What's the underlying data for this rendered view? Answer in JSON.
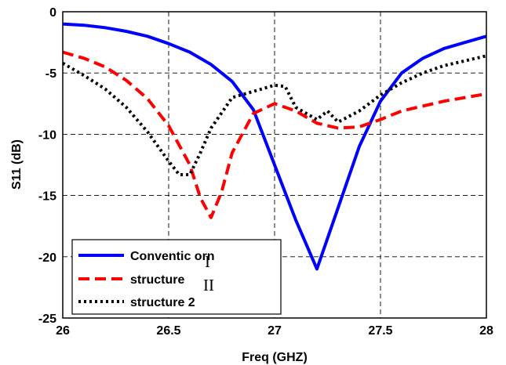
{
  "chart_data": {
    "type": "line",
    "xlabel": "Freq (GHZ)",
    "ylabel": "S11 (dB)",
    "xlim": [
      26,
      28
    ],
    "ylim": [
      -25,
      0
    ],
    "x_ticks": [
      "26",
      "26.5",
      "27",
      "27.5",
      "28"
    ],
    "y_ticks": [
      "0",
      "-5",
      "-10",
      "-15",
      "-20",
      "-25"
    ],
    "grid": true,
    "legend_placement": "bottom-left",
    "series": [
      {
        "name": "Conventic orn",
        "color": "#0000ff",
        "style": "solid",
        "x": [
          26.0,
          26.1,
          26.2,
          26.3,
          26.4,
          26.5,
          26.6,
          26.7,
          26.8,
          26.9,
          27.0,
          27.1,
          27.2,
          27.3,
          27.4,
          27.5,
          27.6,
          27.7,
          27.8,
          27.9,
          28.0
        ],
        "y": [
          -1.0,
          -1.1,
          -1.3,
          -1.6,
          -2.0,
          -2.6,
          -3.3,
          -4.3,
          -5.7,
          -8.0,
          -12.5,
          -17.0,
          -21.0,
          -16.0,
          -11.0,
          -7.3,
          -5.0,
          -3.8,
          -3.0,
          -2.5,
          -2.0
        ]
      },
      {
        "name": "structure",
        "color": "#ff0000",
        "style": "dashed",
        "x": [
          26.0,
          26.1,
          26.2,
          26.3,
          26.4,
          26.5,
          26.6,
          26.65,
          26.7,
          26.75,
          26.8,
          26.9,
          27.0,
          27.1,
          27.2,
          27.3,
          27.4,
          27.5,
          27.6,
          27.7,
          27.8,
          27.9,
          28.0
        ],
        "y": [
          -3.3,
          -3.8,
          -4.5,
          -5.6,
          -7.1,
          -9.3,
          -12.5,
          -15.2,
          -16.8,
          -14.7,
          -11.5,
          -8.3,
          -7.5,
          -8.1,
          -9.1,
          -9.5,
          -9.4,
          -8.8,
          -8.1,
          -7.7,
          -7.3,
          -7.0,
          -6.7
        ]
      },
      {
        "name": "structure 2",
        "color": "#000000",
        "style": "dotted",
        "x": [
          26.0,
          26.1,
          26.2,
          26.3,
          26.4,
          26.5,
          26.55,
          26.6,
          26.65,
          26.7,
          26.8,
          26.9,
          27.0,
          27.05,
          27.1,
          27.2,
          27.25,
          27.3,
          27.4,
          27.5,
          27.6,
          27.7,
          27.8,
          27.9,
          28.0
        ],
        "y": [
          -4.2,
          -5.2,
          -6.3,
          -7.8,
          -9.8,
          -12.2,
          -13.3,
          -13.3,
          -11.5,
          -9.5,
          -7.0,
          -6.5,
          -6.0,
          -6.1,
          -7.8,
          -8.8,
          -8.1,
          -9.0,
          -8.1,
          -6.8,
          -5.8,
          -5.0,
          -4.4,
          -4.0,
          -3.6
        ]
      }
    ],
    "legend_overlay_marks": [
      "I",
      "II"
    ]
  }
}
